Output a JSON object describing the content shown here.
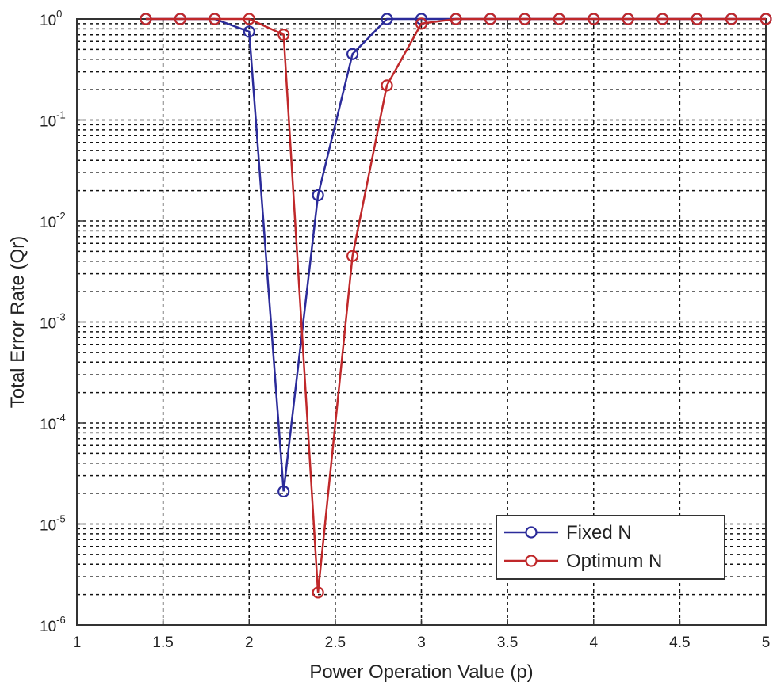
{
  "chart_data": {
    "type": "line",
    "xlabel": "Power Operation Value (p)",
    "ylabel": "Total Error Rate (Qr)",
    "yscale": "log",
    "xlim": [
      1,
      5
    ],
    "ylim": [
      1e-06,
      1
    ],
    "xticks": [
      1,
      1.5,
      2,
      2.5,
      3,
      3.5,
      4,
      4.5,
      5
    ],
    "xtick_labels": [
      "1",
      "1.5",
      "2",
      "2.5",
      "3",
      "3.5",
      "4",
      "4.5",
      "5"
    ],
    "ytick_exponents": [
      "0",
      "-1",
      "-2",
      "-3",
      "-4",
      "-5",
      "-6"
    ],
    "ytick_base": "10",
    "grid": true,
    "legend_position": "bottom-right",
    "series": [
      {
        "name": "Fixed N",
        "color": "#2b2b9a",
        "x": [
          1.4,
          1.6,
          1.8,
          2.0,
          2.2,
          2.4,
          2.6,
          2.8,
          3.0,
          3.2,
          3.4,
          3.6,
          3.8,
          4.0,
          4.2,
          4.4,
          4.6,
          4.8,
          5.0
        ],
        "y": [
          1,
          1,
          1,
          0.75,
          2.1e-05,
          0.018,
          0.45,
          1,
          1,
          1,
          1,
          1,
          1,
          1,
          1,
          1,
          1,
          1,
          1
        ]
      },
      {
        "name": "Optimum N",
        "color": "#c0282a",
        "x": [
          1.4,
          1.6,
          1.8,
          2.0,
          2.2,
          2.4,
          2.6,
          2.8,
          3.0,
          3.2,
          3.4,
          3.6,
          3.8,
          4.0,
          4.2,
          4.4,
          4.6,
          4.8,
          5.0
        ],
        "y": [
          1,
          1,
          1,
          1,
          0.7,
          2.1e-06,
          0.0045,
          0.22,
          0.9,
          1,
          1,
          1,
          1,
          1,
          1,
          1,
          1,
          1,
          1
        ]
      }
    ]
  }
}
